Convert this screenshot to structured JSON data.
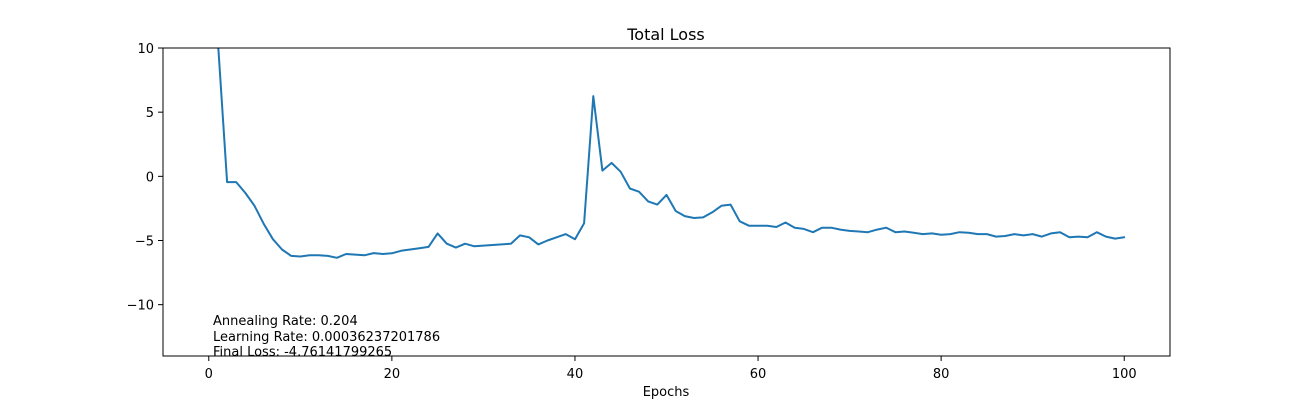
{
  "chart_data": {
    "type": "line",
    "title": "Total Loss",
    "xlabel": "Epochs",
    "ylabel": "",
    "xlim": [
      -5,
      105
    ],
    "ylim": [
      -14,
      10
    ],
    "xticks": [
      0,
      20,
      40,
      60,
      80,
      100
    ],
    "yticks": [
      10,
      5,
      0,
      -5,
      -10
    ],
    "ytick_labels": [
      "10",
      "5",
      "0",
      "−5",
      "−10"
    ],
    "grid": false,
    "line_color": "#1f77b4",
    "series": [
      {
        "x": [
          1,
          2,
          3,
          4,
          5,
          6,
          7,
          8,
          9,
          10,
          11,
          12,
          13,
          14,
          15,
          16,
          17,
          18,
          19,
          20,
          21,
          22,
          23,
          24,
          25,
          26,
          27,
          28,
          29,
          30,
          31,
          32,
          33,
          34,
          35,
          36,
          37,
          38,
          39,
          40,
          41,
          42,
          43,
          44,
          45,
          46,
          47,
          48,
          49,
          50,
          51,
          52,
          53,
          54,
          55,
          56,
          57,
          58,
          59,
          60,
          61,
          62,
          63,
          64,
          65,
          66,
          67,
          68,
          69,
          70,
          71,
          72,
          73,
          74,
          75,
          76,
          77,
          78,
          79,
          80,
          81,
          82,
          83,
          84,
          85,
          86,
          87,
          88,
          89,
          90,
          91,
          92,
          93,
          94,
          95,
          96,
          97,
          98,
          99,
          100
        ],
        "values": [
          10.5,
          -0.45,
          -0.45,
          -1.3,
          -2.3,
          -3.7,
          -4.9,
          -5.7,
          -6.2,
          -6.25,
          -6.15,
          -6.15,
          -6.2,
          -6.35,
          -6.05,
          -6.1,
          -6.15,
          -5.98,
          -6.05,
          -6.0,
          -5.8,
          -5.7,
          -5.6,
          -5.5,
          -4.45,
          -5.25,
          -5.55,
          -5.25,
          -5.45,
          -5.4,
          -5.35,
          -5.3,
          -5.25,
          -4.6,
          -4.75,
          -5.3,
          -5.0,
          -4.75,
          -4.5,
          -4.9,
          -3.65,
          6.25,
          0.45,
          1.05,
          0.35,
          -0.95,
          -1.2,
          -1.95,
          -2.2,
          -1.45,
          -2.7,
          -3.1,
          -3.25,
          -3.2,
          -2.8,
          -2.3,
          -2.2,
          -3.5,
          -3.85,
          -3.85,
          -3.85,
          -3.95,
          -3.6,
          -4.0,
          -4.1,
          -4.35,
          -4.0,
          -4.0,
          -4.15,
          -4.25,
          -4.3,
          -4.35,
          -4.15,
          -4.0,
          -4.35,
          -4.3,
          -4.4,
          -4.5,
          -4.45,
          -4.55,
          -4.5,
          -4.35,
          -4.4,
          -4.5,
          -4.5,
          -4.7,
          -4.65,
          -4.5,
          -4.6,
          -4.5,
          -4.7,
          -4.45,
          -4.35,
          -4.75,
          -4.7,
          -4.75,
          -4.35,
          -4.7,
          -4.85,
          -4.75
        ]
      }
    ],
    "annotations": [
      "Annealing Rate: 0.204",
      "Learning Rate: 0.00036237201786",
      "Final Loss: -4.76141799265"
    ]
  }
}
